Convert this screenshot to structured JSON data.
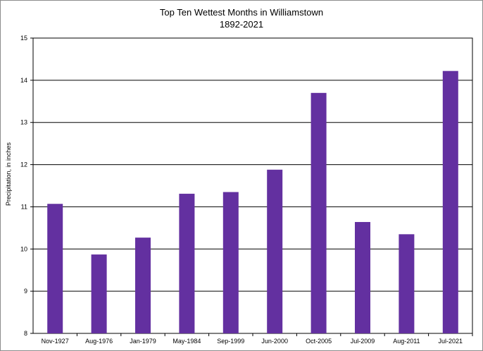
{
  "chart_data": {
    "type": "bar",
    "title": "Top Ten Wettest Months in Williamstown",
    "subtitle": "1892-2021",
    "ylabel": "Precipitation, in inches",
    "xlabel": "",
    "ylim": [
      8,
      15
    ],
    "yticks": [
      "8",
      "9",
      "10",
      "11",
      "12",
      "13",
      "14",
      "15"
    ],
    "grid": true,
    "bar_color": "#6330a0",
    "categories": [
      "Nov-1927",
      "Aug-1976",
      "Jan-1979",
      "May-1984",
      "Sep-1999",
      "Jun-2000",
      "Oct-2005",
      "Jul-2009",
      "Aug-2011",
      "Jul-2021"
    ],
    "values": [
      11.07,
      9.87,
      10.27,
      11.31,
      11.35,
      11.88,
      13.7,
      10.64,
      10.35,
      14.22
    ]
  }
}
